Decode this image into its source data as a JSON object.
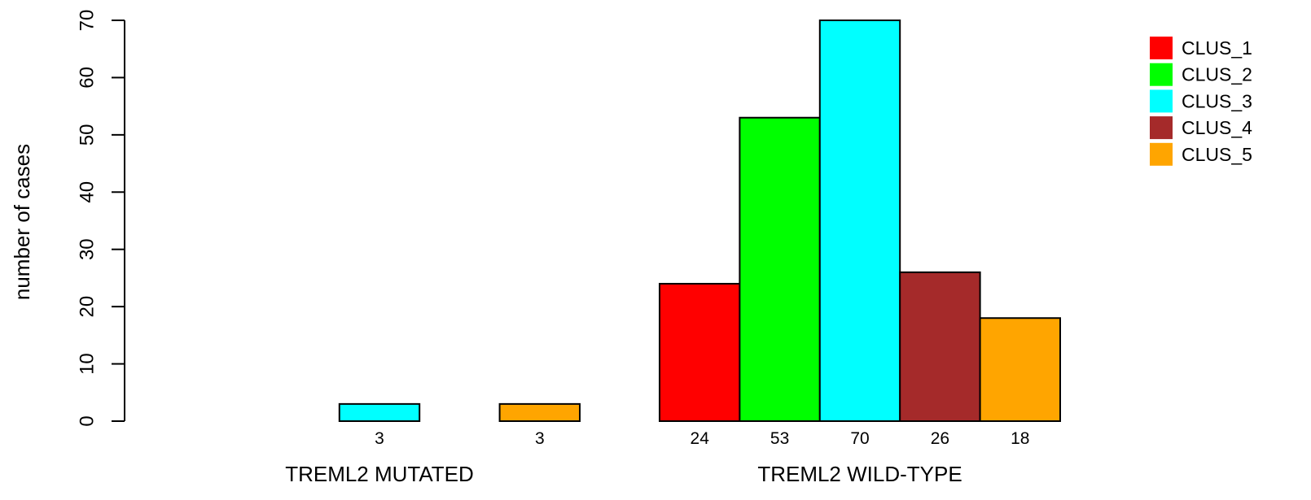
{
  "chart_data": {
    "type": "bar",
    "ylabel": "number of cases",
    "ylim": [
      0,
      70
    ],
    "yticks": [
      0,
      10,
      20,
      30,
      40,
      50,
      60,
      70
    ],
    "series_names": [
      "CLUS_1",
      "CLUS_2",
      "CLUS_3",
      "CLUS_4",
      "CLUS_5"
    ],
    "colors": [
      "#ff0000",
      "#00ff00",
      "#00ffff",
      "#a52a2a",
      "#ffa500"
    ],
    "groups": [
      {
        "label": "TREML2 MUTATED",
        "values": [
          0,
          0,
          3,
          0,
          3
        ],
        "value_labels": [
          "",
          "",
          "3",
          "",
          "3"
        ]
      },
      {
        "label": "TREML2 WILD-TYPE",
        "values": [
          24,
          53,
          70,
          26,
          18
        ],
        "value_labels": [
          "24",
          "53",
          "70",
          "26",
          "18"
        ]
      }
    ],
    "grid": false,
    "legend_position": "top-right"
  }
}
